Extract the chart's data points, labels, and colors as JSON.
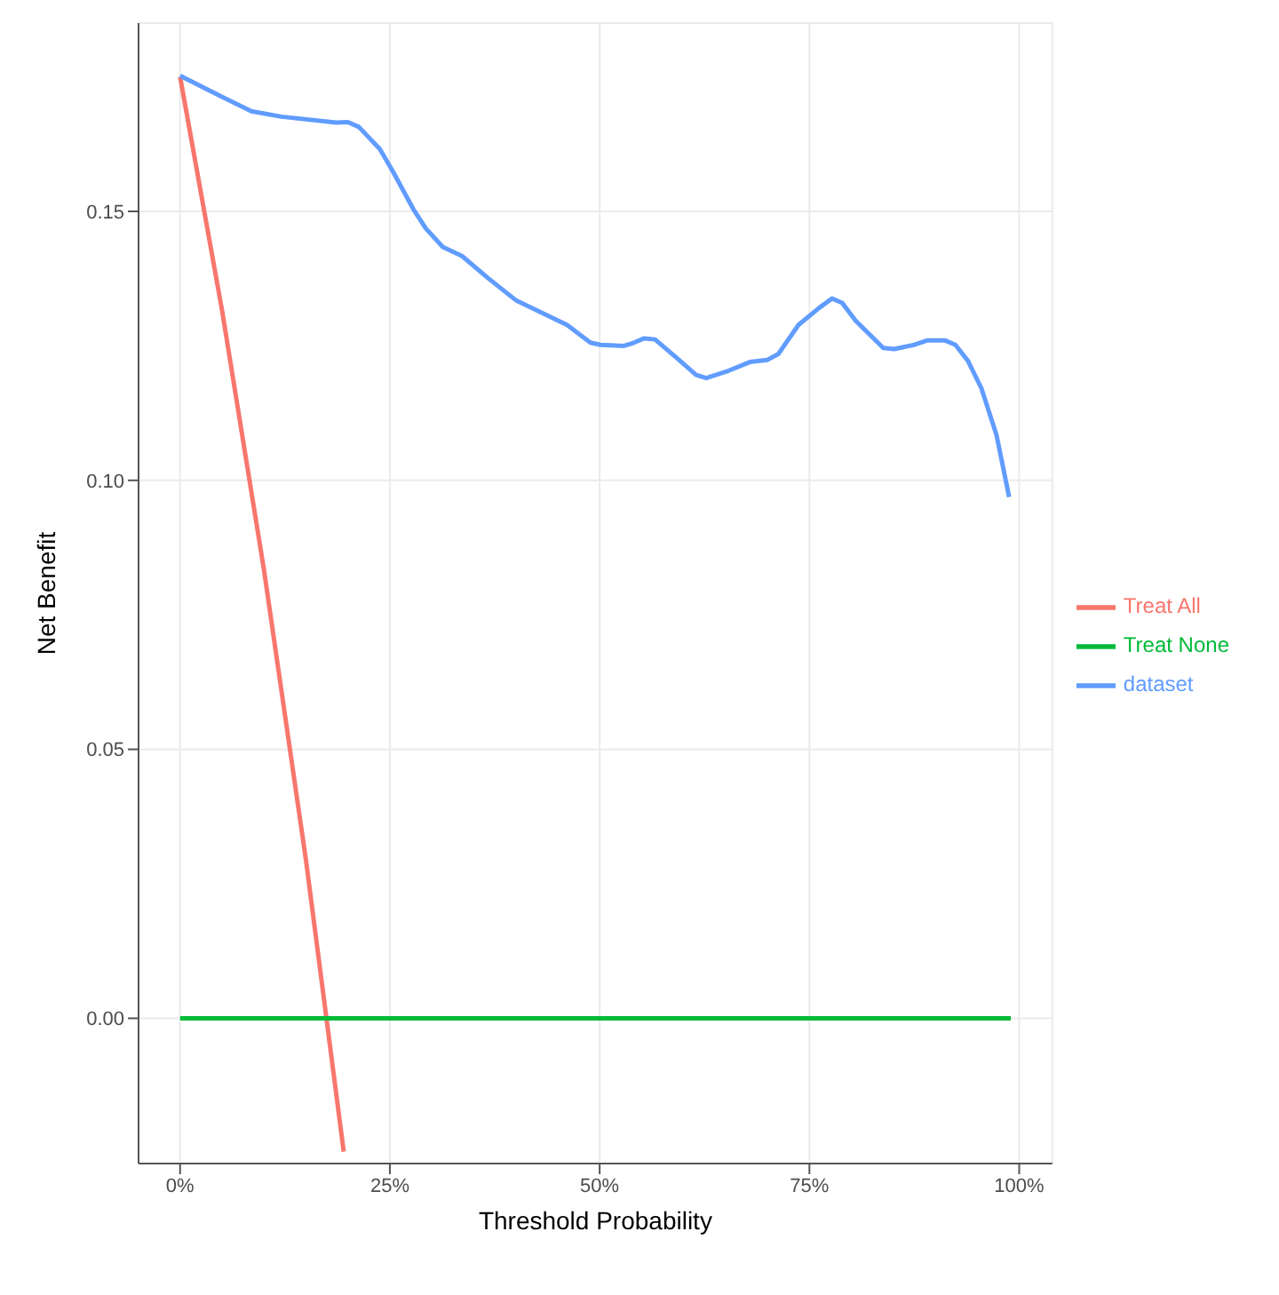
{
  "chart_data": {
    "type": "line",
    "xlabel": "Threshold Probability",
    "ylabel": "Net Benefit",
    "xlim": [
      -4.95,
      103.95
    ],
    "ylim": [
      -0.027,
      0.185
    ],
    "xticks": [
      {
        "value": 0,
        "label": "0%"
      },
      {
        "value": 25,
        "label": "25%"
      },
      {
        "value": 50,
        "label": "50%"
      },
      {
        "value": 75,
        "label": "75%"
      },
      {
        "value": 100,
        "label": "100%"
      }
    ],
    "yticks": [
      {
        "value": 0,
        "label": "0.00"
      },
      {
        "value": 0.05,
        "label": "0.05"
      },
      {
        "value": 0.1,
        "label": "0.10"
      },
      {
        "value": 0.15,
        "label": "0.15"
      }
    ],
    "grid": true,
    "legend": "right",
    "marker": "none",
    "line_style": "solid",
    "series": [
      {
        "name": "Treat All",
        "color": "#f8766d",
        "x": [
          0,
          5,
          10,
          15,
          19.5
        ],
        "values": [
          0.175,
          0.1316,
          0.0833,
          0.0294,
          -0.0248
        ]
      },
      {
        "name": "Treat None",
        "color": "#00ba38",
        "x": [
          0,
          99
        ],
        "values": [
          0,
          0
        ]
      },
      {
        "name": "dataset",
        "color": "#619cff",
        "x": [
          0,
          4.2,
          8.5,
          12.1,
          18.6,
          20,
          21.3,
          23.8,
          25.3,
          27.8,
          29.3,
          31.3,
          33.6,
          36.7,
          40,
          42.8,
          46.1,
          48.9,
          50.1,
          52.9,
          54.1,
          55.3,
          56.6,
          59.6,
          61.5,
          62.7,
          65.4,
          67.9,
          70,
          71.3,
          73.7,
          76.2,
          77.7,
          78.9,
          80.5,
          83.8,
          85.1,
          87.5,
          89,
          91.2,
          92.4,
          93.9,
          95.5,
          97.3,
          98.8
        ],
        "values": [
          0.1752,
          0.1719,
          0.1686,
          0.1676,
          0.1665,
          0.1666,
          0.1657,
          0.1616,
          0.1576,
          0.1504,
          0.1468,
          0.1434,
          0.1417,
          0.1376,
          0.1335,
          0.1314,
          0.1289,
          0.1256,
          0.1252,
          0.125,
          0.1256,
          0.1264,
          0.1262,
          0.1222,
          0.1196,
          0.119,
          0.1204,
          0.122,
          0.1224,
          0.1235,
          0.1289,
          0.1321,
          0.1338,
          0.133,
          0.1297,
          0.1246,
          0.1244,
          0.1252,
          0.126,
          0.126,
          0.1252,
          0.1222,
          0.1171,
          0.1084,
          0.0969
        ]
      }
    ]
  }
}
